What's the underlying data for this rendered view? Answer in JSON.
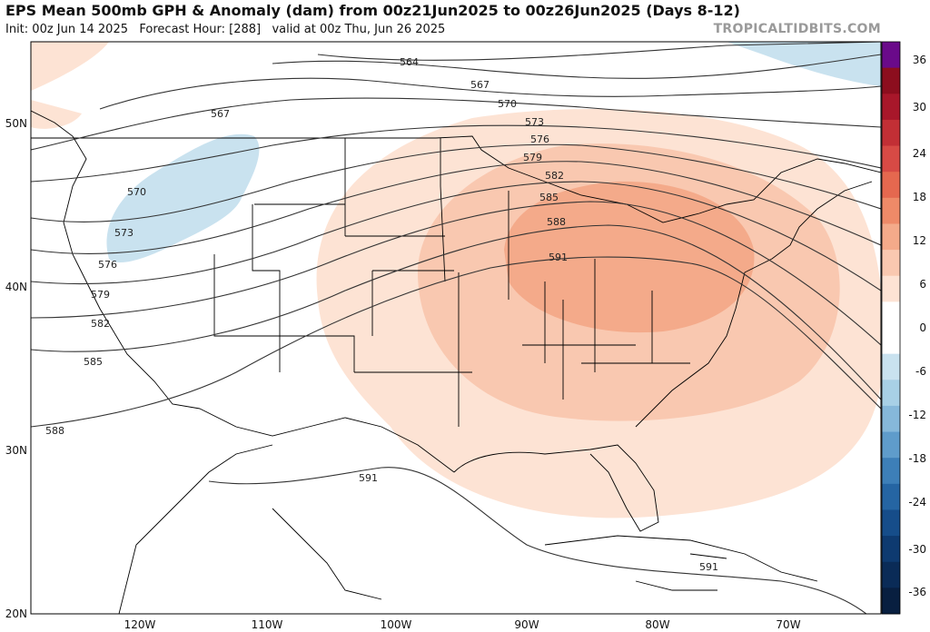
{
  "header": {
    "title": "EPS Mean 500mb GPH & Anomaly (dam) from 00z21Jun2025 to 00z26Jun2025 (Days 8-12)",
    "subtitle": "Init: 00z Jun 14 2025   Forecast Hour: [288]   valid at 00z Thu, Jun 26 2025",
    "brand": "TROPICALTIDBITS.COM"
  },
  "map": {
    "lat_labels": [
      "50N",
      "40N",
      "30N",
      "20N"
    ],
    "lon_labels": [
      "120W",
      "110W",
      "100W",
      "90W",
      "80W",
      "70W"
    ],
    "contour_labels": [
      "564",
      "567",
      "567",
      "570",
      "570",
      "573",
      "573",
      "576",
      "576",
      "579",
      "579",
      "582",
      "582",
      "585",
      "585",
      "588",
      "588",
      "591",
      "591",
      "591"
    ]
  },
  "colorbar": {
    "ticks": [
      "36",
      "30",
      "24",
      "18",
      "12",
      "6",
      "0",
      "-6",
      "-12",
      "-18",
      "-24",
      "-30",
      "-36"
    ],
    "colors": [
      "#6a0a8a",
      "#8c0e1e",
      "#a8172a",
      "#c22f35",
      "#d74a45",
      "#e5684f",
      "#ee8a68",
      "#f4aa8a",
      "#f9c8b0",
      "#fde3d4",
      "#ffffff",
      "#ffffff",
      "#c9e2ef",
      "#a8d0e6",
      "#86b8da",
      "#5f9ccb",
      "#3d7fb8",
      "#2565a3",
      "#164d8a",
      "#0e3a70",
      "#0a2b57",
      "#081f40"
    ]
  }
}
